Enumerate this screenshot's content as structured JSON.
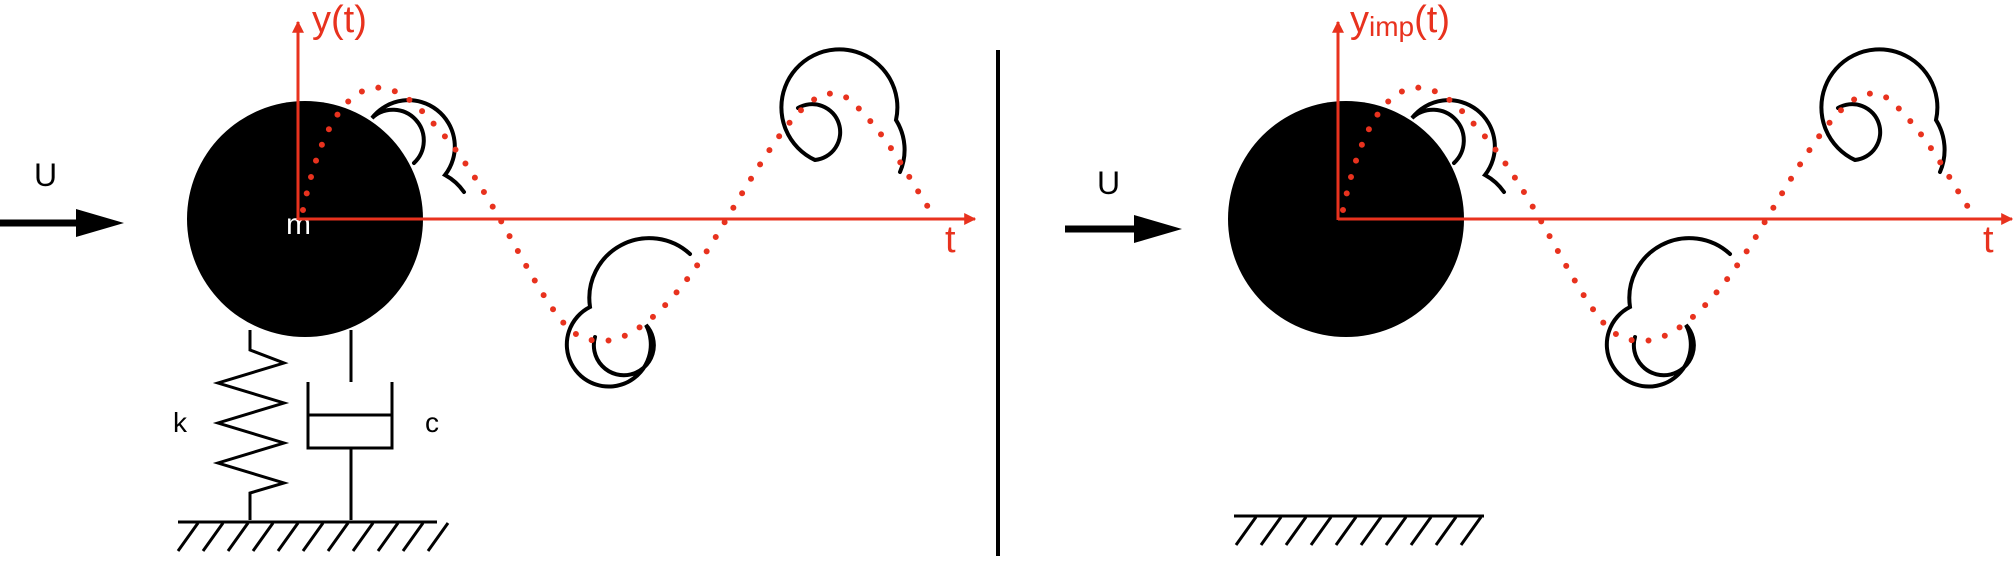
{
  "colors": {
    "axis": "#e8321e",
    "trajectory": "#e8321e",
    "ink": "#000000",
    "background": "#ffffff",
    "mass_label": "#ffffff"
  },
  "left_panel": {
    "flow_label": "U",
    "y_axis_label": "y(t)",
    "t_axis_label": "t",
    "mass_label": "m",
    "spring_label": "k",
    "damper_label": "c"
  },
  "right_panel": {
    "flow_label": "U",
    "y_axis_label_main": "y",
    "y_axis_label_sub": "imp",
    "y_axis_label_arg": "(t)",
    "t_axis_label": "t"
  }
}
